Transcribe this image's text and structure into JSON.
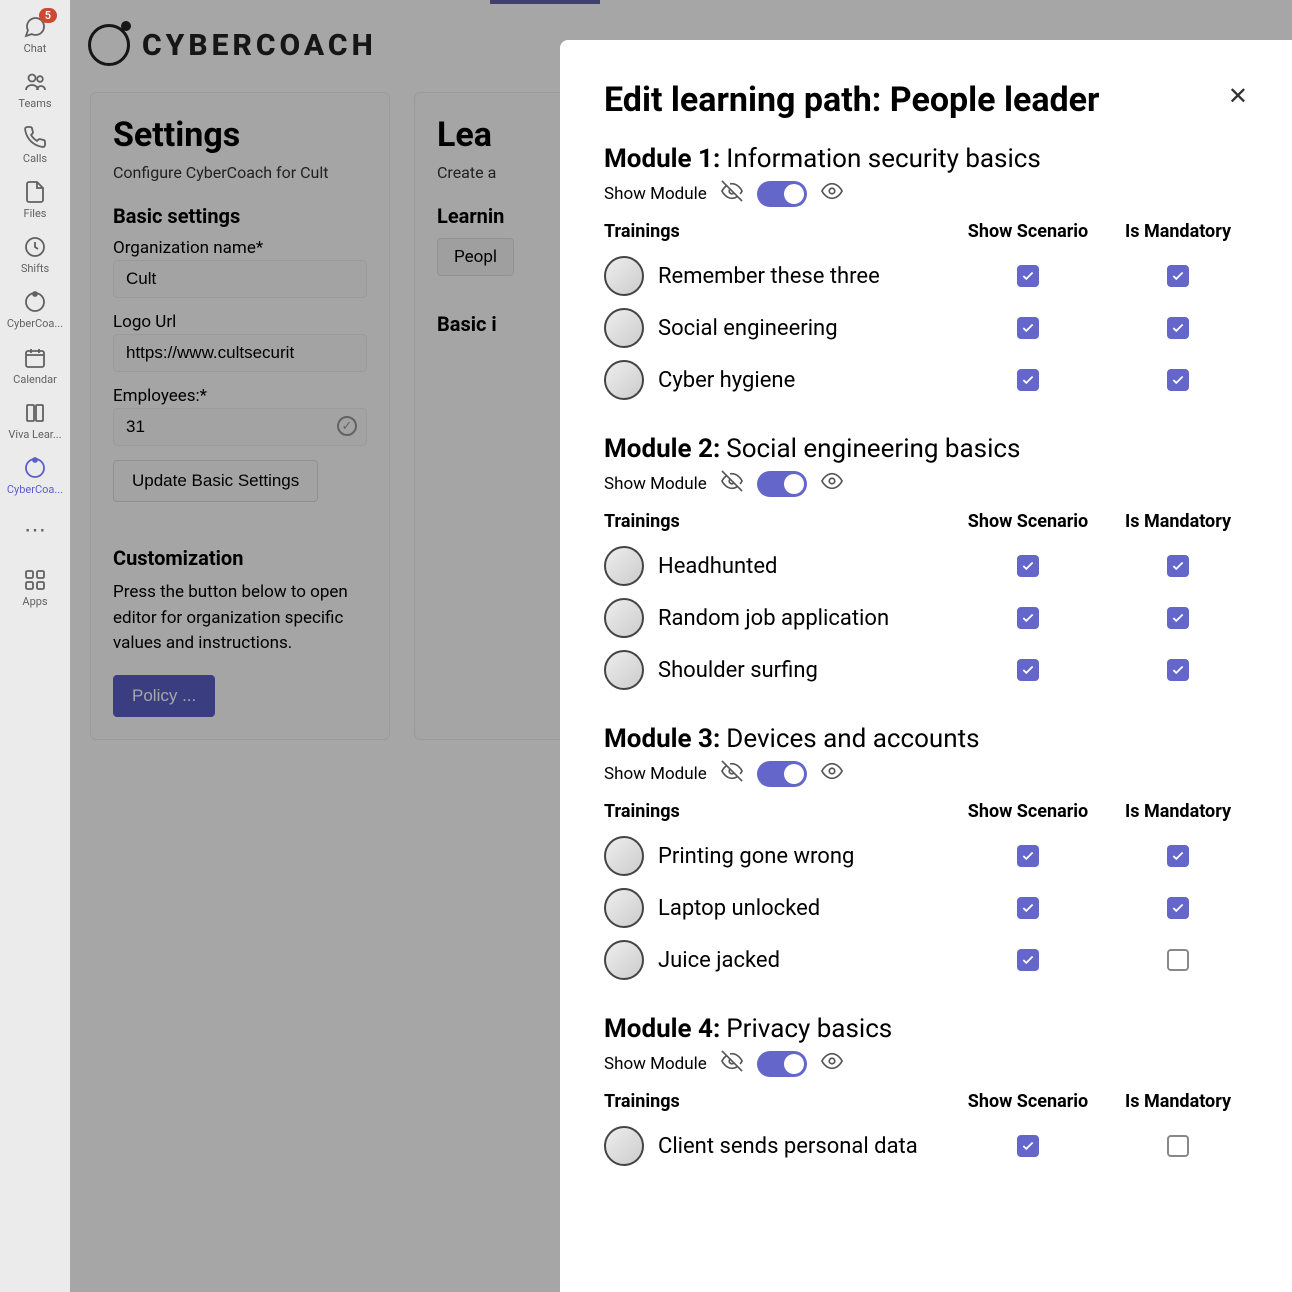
{
  "rail": {
    "items": [
      {
        "label": "Chat",
        "badge": "5",
        "active": false
      },
      {
        "label": "Teams",
        "active": false
      },
      {
        "label": "Calls",
        "active": false
      },
      {
        "label": "Files",
        "active": false
      },
      {
        "label": "Shifts",
        "active": false
      },
      {
        "label": "CyberCoa...",
        "active": false
      },
      {
        "label": "Calendar",
        "active": false
      },
      {
        "label": "Viva Lear...",
        "active": false
      },
      {
        "label": "CyberCoa...",
        "active": true
      }
    ],
    "apps_label": "Apps"
  },
  "brand": {
    "text": "CYBERCOACH"
  },
  "settings_card": {
    "title": "Settings",
    "subtitle": "Configure CyberCoach for Cult",
    "basic_heading": "Basic settings",
    "org_label": "Organization name*",
    "org_value": "Cult",
    "logo_label": "Logo Url",
    "logo_value": "https://www.cultsecurit",
    "emp_label": "Employees:*",
    "emp_value": "31",
    "update_btn": "Update Basic Settings",
    "custom_heading": "Customization",
    "custom_text": "Press the button below to open editor for organization specific values and instructions.",
    "policy_btn": "Policy ..."
  },
  "paths_card": {
    "title": "Lea",
    "subtitle": "Create a",
    "lp_heading": "Learnin",
    "chip": "Peopl",
    "basic_heading": "Basic i"
  },
  "dialog": {
    "title": "Edit learning path: People leader",
    "show_module_label": "Show Module",
    "trainings_label": "Trainings",
    "show_scenario_label": "Show Scenario",
    "mandatory_label": "Is Mandatory",
    "modules": [
      {
        "num": "Module 1:",
        "name": "Information security basics",
        "toggle_on": true,
        "trainings": [
          {
            "name": "Remember these three",
            "show": true,
            "mand": true
          },
          {
            "name": "Social engineering",
            "show": true,
            "mand": true
          },
          {
            "name": "Cyber hygiene",
            "show": true,
            "mand": true
          }
        ]
      },
      {
        "num": "Module 2:",
        "name": "Social engineering basics",
        "toggle_on": true,
        "trainings": [
          {
            "name": "Headhunted",
            "show": true,
            "mand": true
          },
          {
            "name": "Random job application",
            "show": true,
            "mand": true
          },
          {
            "name": "Shoulder surfing",
            "show": true,
            "mand": true
          }
        ]
      },
      {
        "num": "Module 3:",
        "name": "Devices and accounts",
        "toggle_on": true,
        "trainings": [
          {
            "name": "Printing gone wrong",
            "show": true,
            "mand": true
          },
          {
            "name": "Laptop unlocked",
            "show": true,
            "mand": true
          },
          {
            "name": "Juice jacked",
            "show": true,
            "mand": false
          }
        ]
      },
      {
        "num": "Module 4:",
        "name": "Privacy basics",
        "toggle_on": true,
        "trainings": [
          {
            "name": "Client sends personal data",
            "show": true,
            "mand": false
          }
        ]
      }
    ]
  },
  "colors": {
    "accent": "#5b5fc7",
    "toggle": "#6466c9",
    "badge": "#cc4a31"
  }
}
